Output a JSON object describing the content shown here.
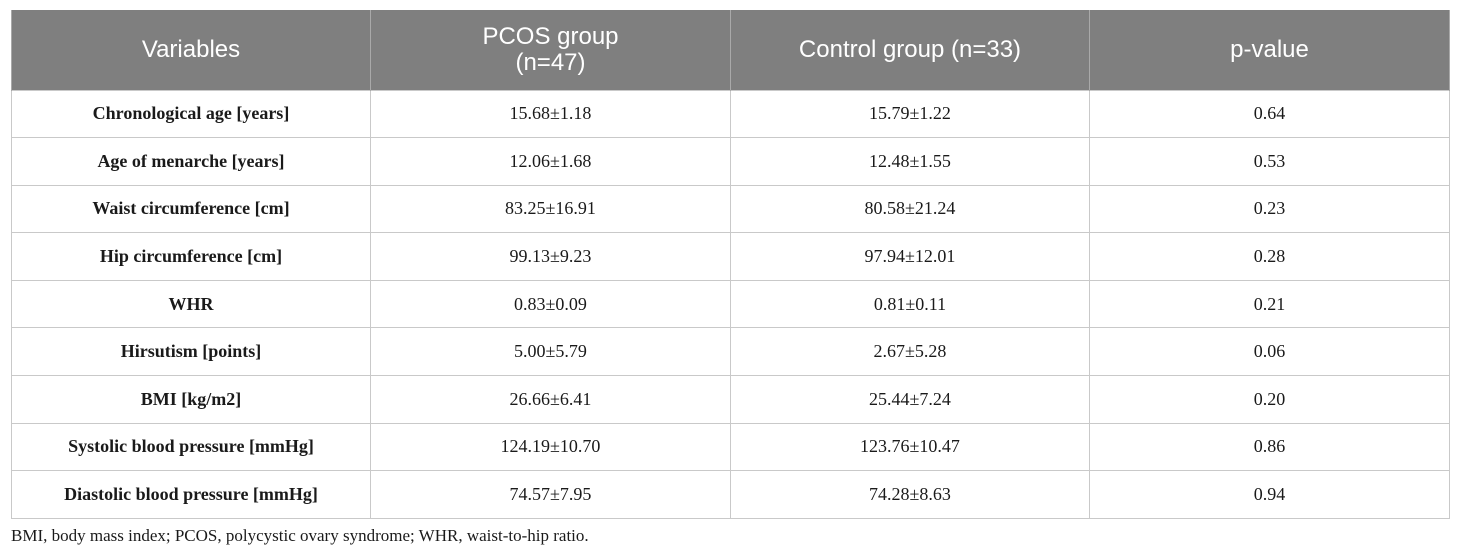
{
  "table": {
    "headers": [
      {
        "line1": "Variables",
        "line2": ""
      },
      {
        "line1": "PCOS group",
        "line2": "(n=47)"
      },
      {
        "line1": "Control group (n=33)",
        "line2": ""
      },
      {
        "line1": "p-value",
        "line2": ""
      }
    ],
    "rows": [
      {
        "variable": "Chronological age [years]",
        "pcos": "15.68±1.18",
        "control": "15.79±1.22",
        "p": "0.64"
      },
      {
        "variable": "Age of menarche [years]",
        "pcos": "12.06±1.68",
        "control": "12.48±1.55",
        "p": "0.53"
      },
      {
        "variable": "Waist circumference [cm]",
        "pcos": "83.25±16.91",
        "control": "80.58±21.24",
        "p": "0.23"
      },
      {
        "variable": "Hip circumference [cm]",
        "pcos": "99.13±9.23",
        "control": "97.94±12.01",
        "p": "0.28"
      },
      {
        "variable": "WHR",
        "pcos": "0.83±0.09",
        "control": "0.81±0.11",
        "p": "0.21"
      },
      {
        "variable": "Hirsutism [points]",
        "pcos": "5.00±5.79",
        "control": "2.67±5.28",
        "p": "0.06"
      },
      {
        "variable": "BMI [kg/m2]",
        "pcos": "26.66±6.41",
        "control": "25.44±7.24",
        "p": "0.20"
      },
      {
        "variable": "Systolic blood pressure [mmHg]",
        "pcos": "124.19±10.70",
        "control": "123.76±10.47",
        "p": "0.86"
      },
      {
        "variable": "Diastolic blood pressure [mmHg]",
        "pcos": "74.57±7.95",
        "control": "74.28±8.63",
        "p": "0.94"
      }
    ]
  },
  "footnote": "BMI, body mass index; PCOS, polycystic ovary syndrome; WHR, waist-to-hip ratio.",
  "colors": {
    "header_background": "#7f7f7f",
    "header_text": "#ffffff",
    "grid_lines": "#c9c9c9"
  }
}
